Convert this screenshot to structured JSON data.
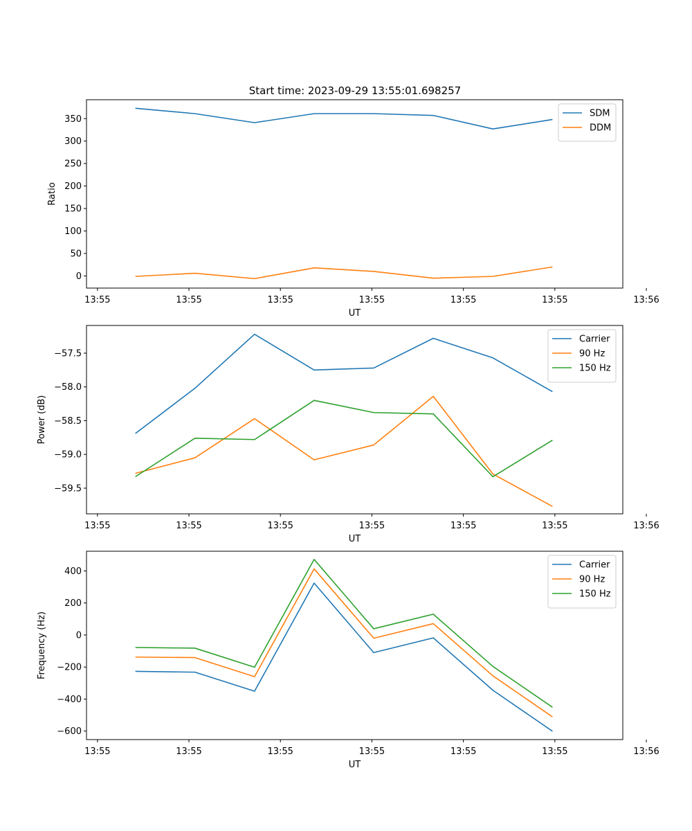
{
  "figure_title": "Start time: 2023-09-29 13:55:01.698257",
  "colors": {
    "blue": "#1f77b4",
    "orange": "#ff7f0e",
    "green": "#2ca02c"
  },
  "chart_data": [
    {
      "type": "line",
      "title": "Start time: 2023-09-29 13:55:01.698257",
      "xlabel": "UT",
      "ylabel": "Ratio",
      "x": [
        1,
        2,
        3,
        4,
        5,
        6,
        7,
        8
      ],
      "xlim": [
        0.18,
        9.18
      ],
      "xticks": [
        0.364,
        1.899,
        3.434,
        4.969,
        6.505,
        8.04,
        9.575
      ],
      "xtick_labels": [
        "13:55",
        "13:55",
        "13:55",
        "13:55",
        "13:55",
        "13:55",
        "13:56"
      ],
      "ylim": [
        -27,
        392
      ],
      "yticks": [
        0,
        50,
        100,
        150,
        200,
        250,
        300,
        350
      ],
      "ytick_labels": [
        "0",
        "50",
        "100",
        "150",
        "200",
        "250",
        "300",
        "350"
      ],
      "legend": "top-right",
      "series": [
        {
          "name": "SDM",
          "color": "#1f77b4",
          "values": [
            373,
            361,
            341,
            361,
            361,
            357,
            327,
            348
          ]
        },
        {
          "name": "DDM",
          "color": "#ff7f0e",
          "values": [
            -1,
            6,
            -6,
            18,
            10,
            -5,
            -1,
            20
          ]
        }
      ]
    },
    {
      "type": "line",
      "title": "",
      "xlabel": "UT",
      "ylabel": "Power (dB)",
      "x": [
        1,
        2,
        3,
        4,
        5,
        6,
        7,
        8
      ],
      "xlim": [
        0.18,
        9.18
      ],
      "xticks": [
        0.364,
        1.899,
        3.434,
        4.969,
        6.505,
        8.04,
        9.575
      ],
      "xtick_labels": [
        "13:55",
        "13:55",
        "13:55",
        "13:55",
        "13:55",
        "13:55",
        "13:56"
      ],
      "ylim": [
        -59.88,
        -57.09
      ],
      "yticks": [
        -57.5,
        -58.0,
        -58.5,
        -59.0,
        -59.5
      ],
      "ytick_labels": [
        "−57.5",
        "−58.0",
        "−58.5",
        "−59.0",
        "−59.5"
      ],
      "legend": "top-right",
      "series": [
        {
          "name": "Carrier",
          "color": "#1f77b4",
          "values": [
            -58.69,
            -58.02,
            -57.22,
            -57.75,
            -57.72,
            -57.28,
            -57.57,
            -58.07
          ]
        },
        {
          "name": "90 Hz",
          "color": "#ff7f0e",
          "values": [
            -59.28,
            -59.05,
            -58.47,
            -59.08,
            -58.86,
            -58.14,
            -59.29,
            -59.77
          ]
        },
        {
          "name": "150 Hz",
          "color": "#2ca02c",
          "values": [
            -59.33,
            -58.76,
            -58.78,
            -58.2,
            -58.38,
            -58.4,
            -59.33,
            -58.79
          ]
        }
      ]
    },
    {
      "type": "line",
      "title": "",
      "xlabel": "UT",
      "ylabel": "Frequency (Hz)",
      "x": [
        1,
        2,
        3,
        4,
        5,
        6,
        7,
        8
      ],
      "xlim": [
        0.18,
        9.18
      ],
      "xticks": [
        0.364,
        1.899,
        3.434,
        4.969,
        6.505,
        8.04,
        9.575
      ],
      "xtick_labels": [
        "13:55",
        "13:55",
        "13:55",
        "13:55",
        "13:55",
        "13:55",
        "13:56"
      ],
      "ylim": [
        -653,
        523
      ],
      "yticks": [
        400,
        200,
        0,
        -200,
        -400,
        -600
      ],
      "ytick_labels": [
        "400",
        "200",
        "0",
        "−200",
        "−400",
        "−600"
      ],
      "legend": "top-right",
      "series": [
        {
          "name": "Carrier",
          "color": "#1f77b4",
          "values": [
            -227,
            -232,
            -351,
            324,
            -110,
            -18,
            -345,
            -601
          ]
        },
        {
          "name": "90 Hz",
          "color": "#ff7f0e",
          "values": [
            -138,
            -141,
            -260,
            413,
            -20,
            71,
            -255,
            -511
          ]
        },
        {
          "name": "150 Hz",
          "color": "#2ca02c",
          "values": [
            -78,
            -82,
            -201,
            472,
            39,
            130,
            -196,
            -451
          ]
        }
      ]
    }
  ]
}
